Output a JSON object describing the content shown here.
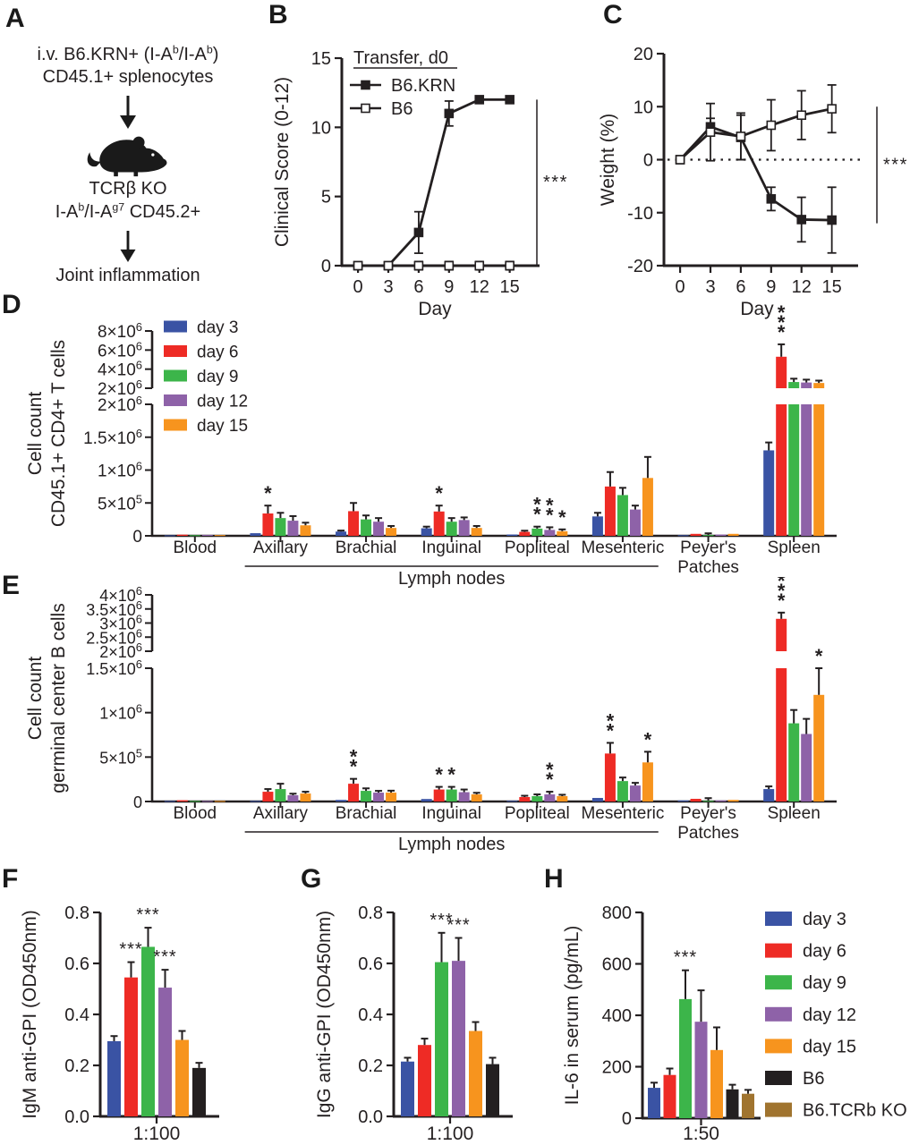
{
  "palette": {
    "day3": "#3A53A4",
    "day6": "#EE2B25",
    "day9": "#3CB54A",
    "day12": "#8E62A8",
    "day15": "#F7941E",
    "b6": "#231F20",
    "tcrbko": "#A0742F",
    "axis": "#231F20"
  },
  "panel_labels": {
    "A": "A",
    "B": "B",
    "C": "C",
    "D": "D",
    "E": "E",
    "F": "F",
    "G": "G",
    "H": "H"
  },
  "panelA": {
    "line1": "i.v. B6.KRN+ (I-A<sup>b</sup>/I-A<sup>b</sup>)",
    "line2": "CD45.1+ splenocytes",
    "host": "TCRβ KO",
    "host2": "I-A<sup>b</sup>/I-A<sup>g7</sup> CD45.2+",
    "outcome": "Joint inflammation"
  },
  "chart_data": {
    "B": {
      "type": "line",
      "xlabel": "Day",
      "ylabel": "Clinical Score (0-12)",
      "x": [
        0,
        3,
        6,
        9,
        12,
        15
      ],
      "ylim": [
        0,
        15
      ],
      "yticks": [
        0,
        5,
        10,
        15
      ],
      "legend_title": "Transfer, d0",
      "series": [
        {
          "name": "B6.KRN",
          "marker": "filled",
          "values": [
            0,
            0,
            2.4,
            11,
            12,
            12
          ],
          "errors": [
            0,
            0,
            1.5,
            0.9,
            0.25,
            0.25
          ]
        },
        {
          "name": "B6",
          "marker": "open",
          "values": [
            0,
            0,
            0,
            0,
            0,
            0
          ],
          "errors": [
            0,
            0,
            0.3,
            0.3,
            0.3,
            0.3
          ]
        }
      ],
      "sig": {
        "text": "***",
        "from": 12,
        "to": 0
      }
    },
    "C": {
      "type": "line",
      "xlabel": "Day",
      "ylabel": "Weight (%)",
      "x": [
        0,
        3,
        6,
        9,
        12,
        15
      ],
      "ylim": [
        -20,
        20
      ],
      "yticks": [
        -20,
        -10,
        0,
        10,
        20
      ],
      "zeroline": true,
      "series": [
        {
          "name": "B6.KRN",
          "marker": "filled",
          "values": [
            0,
            6.2,
            4.2,
            -7.4,
            -11.3,
            -11.4
          ],
          "errors": [
            0,
            1.6,
            4.2,
            2.2,
            4.2,
            6.2
          ]
        },
        {
          "name": "B6",
          "marker": "open",
          "values": [
            0,
            5.2,
            4.4,
            6.5,
            8.4,
            9.6
          ],
          "errors": [
            0,
            5.4,
            4.4,
            4.8,
            4.6,
            4.5
          ]
        }
      ],
      "sig": {
        "text": "***",
        "from": 10,
        "to": -12
      }
    },
    "D": {
      "type": "grouped-bar-broken-axis",
      "ylabel_lines": [
        "Cell count",
        "CD45.1+ CD4+ T cells"
      ],
      "categories": [
        "Blood",
        "Axillary",
        "Brachial",
        "Inguinal",
        "Popliteal",
        "Mesenteric",
        "Peyer's|Patches",
        "Spleen"
      ],
      "series_names": [
        "day 3",
        "day 6",
        "day 9",
        "day 12",
        "day 15"
      ],
      "series_colors": [
        "day3",
        "day6",
        "day9",
        "day12",
        "day15"
      ],
      "values": [
        [
          8000,
          18000,
          10000,
          14000,
          12000
        ],
        [
          40000,
          340000,
          270000,
          230000,
          160000
        ],
        [
          65000,
          375000,
          250000,
          215000,
          120000
        ],
        [
          115000,
          370000,
          215000,
          240000,
          120000
        ],
        [
          20000,
          60000,
          110000,
          90000,
          70000
        ],
        [
          295000,
          750000,
          620000,
          400000,
          880000
        ],
        [
          10000,
          30000,
          12000,
          20000,
          30000
        ],
        [
          1300000,
          5300000,
          2650000,
          2600000,
          2550000
        ]
      ],
      "errors": [
        [
          3000,
          6000,
          4000,
          5000,
          4000
        ],
        [
          12000,
          120000,
          80000,
          70000,
          40000
        ],
        [
          15000,
          125000,
          60000,
          55000,
          30000
        ],
        [
          25000,
          90000,
          55000,
          40000,
          30000
        ],
        [
          7000,
          18000,
          30000,
          40000,
          28000
        ],
        [
          55000,
          220000,
          110000,
          60000,
          320000
        ],
        [
          4000,
          10000,
          26000,
          7000,
          9000
        ],
        [
          120000,
          1300000,
          350000,
          300000,
          250000
        ]
      ],
      "sig": [
        {
          "cat": 1,
          "ser": 1,
          "text": "*"
        },
        {
          "cat": 3,
          "ser": 1,
          "text": "*"
        },
        {
          "cat": 4,
          "ser": 2,
          "text": "**"
        },
        {
          "cat": 4,
          "ser": 3,
          "text": "**"
        },
        {
          "cat": 4,
          "ser": 4,
          "text": "*"
        },
        {
          "cat": 7,
          "ser": 1,
          "text": "***"
        }
      ],
      "lower": {
        "max": 2000000,
        "ticks": [
          {
            "v": 0,
            "b": "0",
            "e": ""
          },
          {
            "v": 500000,
            "b": "5×10",
            "e": "5"
          },
          {
            "v": 1000000,
            "b": "1×10",
            "e": "6"
          },
          {
            "v": 1500000,
            "b": "1.5×10",
            "e": "6"
          },
          {
            "v": 2000000,
            "b": "2×10",
            "e": "6"
          }
        ]
      },
      "upper": {
        "min": 2000000,
        "max": 8000000,
        "ticks": [
          {
            "v": 2000000,
            "b": "2×10",
            "e": "6"
          },
          {
            "v": 4000000,
            "b": "4×10",
            "e": "6"
          },
          {
            "v": 6000000,
            "b": "6×10",
            "e": "6"
          },
          {
            "v": 8000000,
            "b": "8×10",
            "e": "6"
          }
        ]
      },
      "bracket": {
        "from": 1,
        "to": 5,
        "label": "Lymph nodes"
      },
      "legend": true
    },
    "E": {
      "type": "grouped-bar-broken-axis",
      "ylabel_lines": [
        "Cell count",
        "germinal center B cells"
      ],
      "categories": [
        "Blood",
        "Axillary",
        "Brachial",
        "Inguinal",
        "Popliteal",
        "Mesenteric",
        "Peyer's|Patches",
        "Spleen"
      ],
      "series_names": [
        "day 3",
        "day 6",
        "day 9",
        "day 12",
        "day 15"
      ],
      "series_colors": [
        "day3",
        "day6",
        "day9",
        "day12",
        "day15"
      ],
      "values": [
        [
          1500,
          14000,
          3000,
          4000,
          3500
        ],
        [
          6000,
          110000,
          140000,
          70000,
          90000
        ],
        [
          18000,
          200000,
          120000,
          100000,
          100000
        ],
        [
          28000,
          135000,
          135000,
          105000,
          80000
        ],
        [
          8000,
          50000,
          60000,
          80000,
          60000
        ],
        [
          40000,
          540000,
          230000,
          180000,
          440000
        ],
        [
          12000,
          30000,
          8000,
          12000,
          18000
        ],
        [
          140000,
          3150000,
          880000,
          760000,
          1200000
        ]
      ],
      "errors": [
        [
          800,
          5000,
          1200,
          1500,
          1200
        ],
        [
          2500,
          30000,
          60000,
          18000,
          20000
        ],
        [
          6000,
          55000,
          28000,
          20000,
          22000
        ],
        [
          8000,
          30000,
          30000,
          30000,
          18000
        ],
        [
          3000,
          15000,
          20000,
          30000,
          16000
        ],
        [
          10000,
          120000,
          40000,
          30000,
          120000
        ],
        [
          5000,
          10000,
          30000,
          5000,
          6000
        ],
        [
          30000,
          220000,
          150000,
          170000,
          300000
        ]
      ],
      "sig": [
        {
          "cat": 2,
          "ser": 1,
          "text": "**"
        },
        {
          "cat": 3,
          "ser": 1,
          "text": "*"
        },
        {
          "cat": 3,
          "ser": 2,
          "text": "*"
        },
        {
          "cat": 4,
          "ser": 3,
          "text": "**"
        },
        {
          "cat": 5,
          "ser": 1,
          "text": "**"
        },
        {
          "cat": 5,
          "ser": 4,
          "text": "*"
        },
        {
          "cat": 7,
          "ser": 1,
          "text": "***"
        },
        {
          "cat": 7,
          "ser": 4,
          "text": "*"
        }
      ],
      "lower": {
        "max": 1500000,
        "ticks": [
          {
            "v": 0,
            "b": "0",
            "e": ""
          },
          {
            "v": 500000,
            "b": "5×10",
            "e": "5"
          },
          {
            "v": 1000000,
            "b": "1×10",
            "e": "6"
          },
          {
            "v": 1500000,
            "b": "1.5×10",
            "e": "6"
          }
        ]
      },
      "upper": {
        "min": 2000000,
        "max": 4000000,
        "ticks": [
          {
            "v": 2000000,
            "b": "2×10",
            "e": "6"
          },
          {
            "v": 2500000,
            "b": "2.5×10",
            "e": "6"
          },
          {
            "v": 3000000,
            "b": "3×10",
            "e": "6"
          },
          {
            "v": 3500000,
            "b": "3.5×10",
            "e": "6"
          },
          {
            "v": 4000000,
            "b": "4×10",
            "e": "6"
          }
        ]
      },
      "bracket": {
        "from": 1,
        "to": 5,
        "label": "Lymph nodes"
      },
      "legend": false
    },
    "F": {
      "type": "bar",
      "ylabel": "IgM anti-GPI (OD450nm)",
      "xlabel": "1:100",
      "ylim": [
        0,
        0.8
      ],
      "yticks": [
        {
          "v": 0,
          "label": "0.0"
        },
        {
          "v": 0.2,
          "label": "0.2"
        },
        {
          "v": 0.4,
          "label": "0.4"
        },
        {
          "v": 0.6,
          "label": "0.6"
        },
        {
          "v": 0.8,
          "label": "0.8"
        }
      ],
      "colors": [
        "day3",
        "day6",
        "day9",
        "day12",
        "day15",
        "b6"
      ],
      "values": [
        0.295,
        0.545,
        0.665,
        0.505,
        0.3,
        0.19
      ],
      "errors": [
        0.02,
        0.06,
        0.075,
        0.07,
        0.035,
        0.02
      ],
      "sig": [
        "",
        "***",
        "***",
        "***",
        "",
        ""
      ]
    },
    "G": {
      "type": "bar",
      "ylabel": "IgG anti-GPI (OD450nm)",
      "xlabel": "1:100",
      "ylim": [
        0,
        0.8
      ],
      "yticks": [
        {
          "v": 0,
          "label": "0.0"
        },
        {
          "v": 0.2,
          "label": "0.2"
        },
        {
          "v": 0.4,
          "label": "0.4"
        },
        {
          "v": 0.6,
          "label": "0.6"
        },
        {
          "v": 0.8,
          "label": "0.8"
        }
      ],
      "colors": [
        "day3",
        "day6",
        "day9",
        "day12",
        "day15",
        "b6"
      ],
      "values": [
        0.215,
        0.28,
        0.605,
        0.61,
        0.335,
        0.205
      ],
      "errors": [
        0.015,
        0.025,
        0.115,
        0.09,
        0.035,
        0.025
      ],
      "sig": [
        "",
        "",
        "***",
        "***",
        "",
        ""
      ]
    },
    "H": {
      "type": "bar",
      "ylabel": "IL-6 in serum (pg/mL)",
      "xlabel": "1:50",
      "ylim": [
        0,
        800
      ],
      "yticks": [
        {
          "v": 0,
          "label": "0"
        },
        {
          "v": 200,
          "label": "200"
        },
        {
          "v": 400,
          "label": "400"
        },
        {
          "v": 600,
          "label": "600"
        },
        {
          "v": 800,
          "label": "800"
        }
      ],
      "colors": [
        "day3",
        "day6",
        "day9",
        "day12",
        "day15",
        "b6",
        "tcrbko"
      ],
      "values": [
        118,
        168,
        463,
        375,
        265,
        112,
        95
      ],
      "errors": [
        20,
        25,
        112,
        122,
        88,
        18,
        15
      ],
      "sig": [
        "",
        "",
        "***",
        "",
        "",
        "",
        ""
      ],
      "legend_entries": [
        {
          "color": "day3",
          "label": "day 3"
        },
        {
          "color": "day6",
          "label": "day 6"
        },
        {
          "color": "day9",
          "label": "day 9"
        },
        {
          "color": "day12",
          "label": "day 12"
        },
        {
          "color": "day15",
          "label": "day 15"
        },
        {
          "color": "b6",
          "label": "B6"
        },
        {
          "color": "tcrbko",
          "label": "B6.TCRb KO"
        }
      ]
    }
  }
}
